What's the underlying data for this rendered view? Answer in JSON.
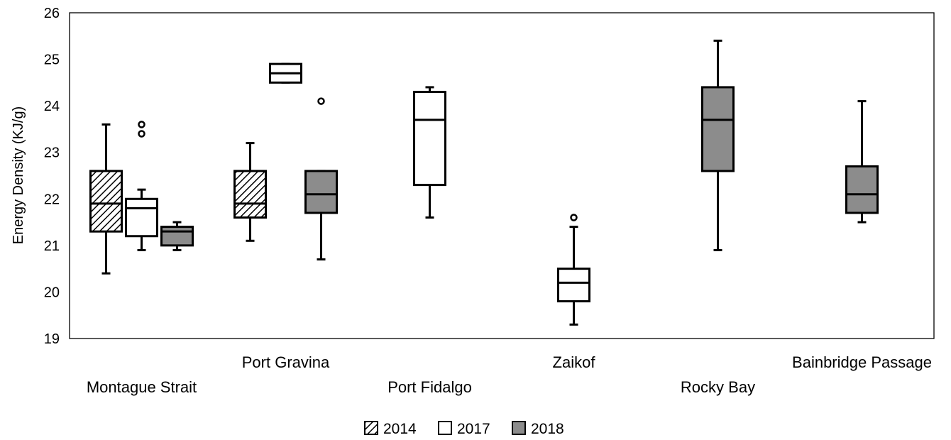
{
  "chart_data": {
    "type": "box",
    "ylabel": "Energy Density (KJ/g)",
    "ylim": [
      19,
      26
    ],
    "yticks": [
      19,
      20,
      21,
      22,
      23,
      24,
      25,
      26
    ],
    "grid": false,
    "legend_position": "bottom-center",
    "categories": [
      "Montague Strait",
      "Port Gravina",
      "Port Fidalgo",
      "Zaikof",
      "Rocky Bay",
      "Bainbridge Passage"
    ],
    "series": [
      {
        "name": "2014",
        "fill": "hatch"
      },
      {
        "name": "2017",
        "fill": "#ffffff"
      },
      {
        "name": "2018",
        "fill": "#8c8c8c"
      }
    ],
    "boxes": [
      {
        "category": "Montague Strait",
        "series": "2014",
        "whisker_low": 20.4,
        "q1": 21.3,
        "median": 21.9,
        "q3": 22.6,
        "whisker_high": 23.6,
        "outliers": []
      },
      {
        "category": "Montague Strait",
        "series": "2017",
        "whisker_low": 20.9,
        "q1": 21.2,
        "median": 21.8,
        "q3": 22.0,
        "whisker_high": 22.2,
        "outliers": [
          23.4,
          23.6
        ]
      },
      {
        "category": "Montague Strait",
        "series": "2018",
        "whisker_low": 20.9,
        "q1": 21.0,
        "median": 21.3,
        "q3": 21.4,
        "whisker_high": 21.5,
        "outliers": []
      },
      {
        "category": "Port Gravina",
        "series": "2014",
        "whisker_low": 21.1,
        "q1": 21.6,
        "median": 21.9,
        "q3": 22.6,
        "whisker_high": 23.2,
        "outliers": []
      },
      {
        "category": "Port Gravina",
        "series": "2017",
        "whisker_low": 24.5,
        "q1": 24.5,
        "median": 24.7,
        "q3": 24.9,
        "whisker_high": 24.9,
        "outliers": []
      },
      {
        "category": "Port Gravina",
        "series": "2018",
        "whisker_low": 20.7,
        "q1": 21.7,
        "median": 22.1,
        "q3": 22.6,
        "whisker_high": 22.6,
        "outliers": [
          24.1
        ]
      },
      {
        "category": "Port Fidalgo",
        "series": "2017",
        "whisker_low": 21.6,
        "q1": 22.3,
        "median": 23.7,
        "q3": 24.3,
        "whisker_high": 24.4,
        "outliers": []
      },
      {
        "category": "Zaikof",
        "series": "2017",
        "whisker_low": 19.3,
        "q1": 19.8,
        "median": 20.2,
        "q3": 20.5,
        "whisker_high": 21.4,
        "outliers": [
          21.6
        ]
      },
      {
        "category": "Rocky Bay",
        "series": "2018",
        "whisker_low": 20.9,
        "q1": 22.6,
        "median": 23.7,
        "q3": 24.4,
        "whisker_high": 25.4,
        "outliers": []
      },
      {
        "category": "Bainbridge Passage",
        "series": "2018",
        "whisker_low": 21.5,
        "q1": 21.7,
        "median": 22.1,
        "q3": 22.7,
        "whisker_high": 24.1,
        "outliers": []
      }
    ]
  }
}
